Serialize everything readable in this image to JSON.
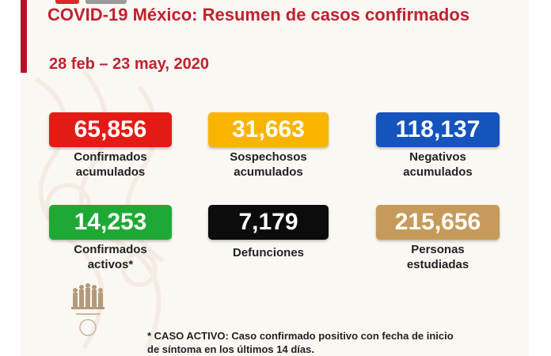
{
  "header": {
    "title": "COVID-19 México: Resumen de casos confirmados",
    "date_range": "28 feb – 23 may, 2020"
  },
  "stats": [
    {
      "id": "confirmados",
      "value": "65,856",
      "label": "Confirmados\nacumulados",
      "color": "#e41b14"
    },
    {
      "id": "sospechosos",
      "value": "31,663",
      "label": "Sospechosos\nacumulados",
      "color": "#f9b400"
    },
    {
      "id": "negativos",
      "value": "118,137",
      "label": "Negativos\nacumulados",
      "color": "#1553bd"
    },
    {
      "id": "activos",
      "value": "14,253",
      "label": "Confirmados\nactivos*",
      "color": "#1ea934"
    },
    {
      "id": "defunciones",
      "value": "7,179",
      "label": "Defunciones",
      "color": "#0c0c0c"
    },
    {
      "id": "estudiadas",
      "value": "215,656",
      "label": "Personas\nestudiadas",
      "color": "#c69a5a"
    }
  ],
  "footnote": "* CASO ACTIVO: Caso confirmado positivo con fecha de inicio\nde síntoma en los últimos 14 días.",
  "colors": {
    "title": "#c0212e",
    "accent_bar": "#b5132a"
  },
  "icons": {
    "logo": "government-emblem-icon"
  }
}
